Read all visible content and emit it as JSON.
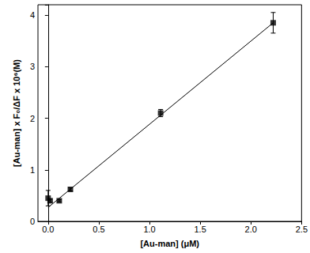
{
  "chart_data": {
    "type": "scatter",
    "x_label": "[Au-man] (μM)",
    "y_label": "[Au-man] x F₀/ΔF x 10⁶(M)",
    "xlim": [
      -0.1,
      2.5
    ],
    "xticks": [
      {
        "value": 0,
        "label": "0.0"
      },
      {
        "value": 0.5,
        "label": "0.5"
      },
      {
        "value": 1,
        "label": "1.0"
      },
      {
        "value": 1.5,
        "label": "1.5"
      },
      {
        "value": 2,
        "label": "2.0"
      },
      {
        "value": 2.5,
        "label": "2.5"
      }
    ],
    "ylim": [
      0,
      4.2
    ],
    "yticks": [
      0,
      1,
      2,
      3,
      4
    ],
    "grid": false,
    "series": [
      {
        "type": "scatter",
        "marker": "square",
        "color": "#000000",
        "x": [
          0.0,
          0.02,
          0.11,
          0.22,
          1.11,
          2.22
        ],
        "values": [
          0.45,
          0.4,
          0.4,
          0.62,
          2.1,
          3.85
        ],
        "errors": [
          0.15,
          0.03,
          0.02,
          0.03,
          0.07,
          0.2
        ]
      },
      {
        "type": "line",
        "line_style": "solid",
        "color": "#000000",
        "x": [
          0.0,
          2.22
        ],
        "values": [
          0.27,
          3.85
        ]
      }
    ]
  }
}
